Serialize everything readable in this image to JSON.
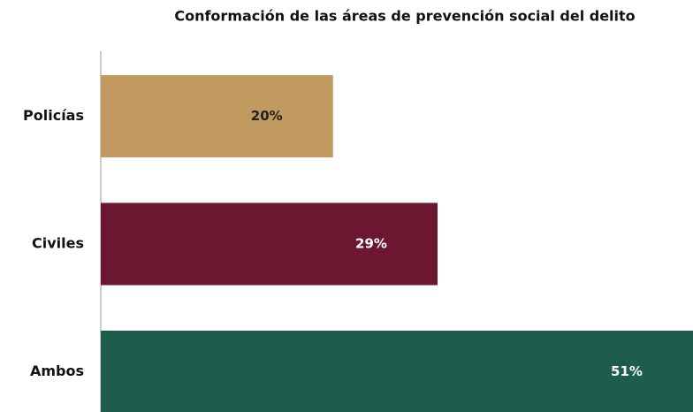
{
  "chart_data": {
    "type": "barh",
    "title": "Conformación de las áreas de prevención social del delito",
    "categories": [
      "Policías",
      "Civiles",
      "Ambos"
    ],
    "values": [
      20,
      29,
      51
    ],
    "value_labels": [
      "20%",
      "29%",
      "51%"
    ],
    "colors": [
      "#c09a5e",
      "#6b1730",
      "#1e5c4b"
    ]
  }
}
